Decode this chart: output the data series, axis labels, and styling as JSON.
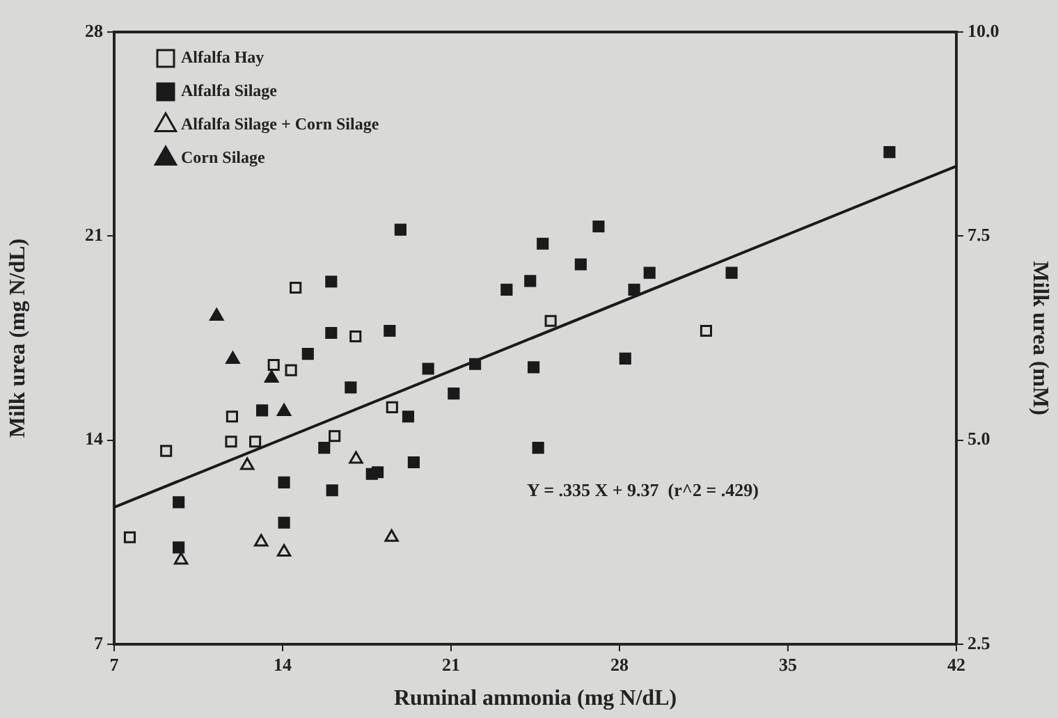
{
  "chart_data": {
    "type": "scatter",
    "xlabel": "Ruminal ammonia (mg N/dL)",
    "ylabel": "Milk urea (mg N/dL)",
    "y2label": "Milk urea (mM)",
    "xlim": [
      7,
      42
    ],
    "xticks": [
      7,
      14,
      21,
      28,
      35,
      42
    ],
    "ylim": [
      7,
      28
    ],
    "yticks": [
      7,
      14,
      21,
      28
    ],
    "y2lim": [
      2.5,
      10
    ],
    "y2ticks": [
      2.5,
      {
        "value": 5,
        "label": "5.0"
      },
      7.5,
      {
        "value": 10,
        "label": "10.0"
      }
    ],
    "grid": false,
    "legend": "top left",
    "annotations": [
      "Y = .335 X + 9.37  (r^2 = .429)"
    ],
    "series": [
      {
        "name": "Alfalfa Hay",
        "color": "#d9d9d7",
        "marker": "square",
        "x": [
          7.65,
          9.16,
          11.9,
          11.86,
          12.86,
          13.63,
          14.35,
          14.54,
          17.03,
          16.16,
          18.55,
          25.14,
          31.6
        ],
        "values": [
          10.67,
          13.63,
          14.81,
          13.95,
          13.95,
          16.58,
          16.4,
          19.23,
          17.56,
          14.14,
          15.13,
          18.09,
          17.75
        ]
      },
      {
        "name": "Alfalfa Silage",
        "color": "#1a1a1a",
        "marker": "square",
        "x": [
          18.9,
          16.02,
          16.02,
          18.45,
          15.05,
          20.05,
          16.83,
          13.15,
          19.22,
          15.73,
          17.95,
          17.71,
          19.45,
          14.06,
          16.06,
          9.68,
          14.06,
          9.68,
          24.81,
          27.13,
          26.39,
          23.31,
          24.29,
          29.25,
          28.61,
          32.66,
          22.0,
          21.11,
          24.43,
          28.24,
          24.62,
          39.22
        ],
        "values": [
          21.22,
          19.44,
          17.68,
          17.75,
          16.96,
          16.45,
          15.81,
          15.02,
          14.81,
          13.74,
          12.9,
          12.84,
          13.24,
          12.55,
          12.28,
          11.87,
          11.17,
          10.32,
          20.74,
          21.33,
          20.03,
          19.16,
          19.46,
          19.74,
          19.16,
          19.74,
          16.61,
          15.6,
          16.5,
          16.8,
          13.74,
          23.88
        ]
      },
      {
        "name": "Alfalfa Silage + Corn Silage",
        "color": "#d9d9d7",
        "marker": "triangle",
        "x": [
          12.53,
          17.05,
          9.78,
          13.11,
          14.06,
          18.53
        ],
        "values": [
          13.13,
          13.35,
          9.89,
          10.51,
          10.16,
          10.67
        ]
      },
      {
        "name": "Corn Silage",
        "color": "#1a1a1a",
        "marker": "triangle",
        "x": [
          11.26,
          11.93,
          13.54,
          14.06
        ],
        "values": [
          18.25,
          16.77,
          16.13,
          14.98
        ]
      },
      {
        "type": "line",
        "color": "#1a1a1a",
        "marker": "none",
        "x": [
          7,
          42
        ],
        "values": [
          11.7,
          23.4
        ]
      }
    ]
  }
}
